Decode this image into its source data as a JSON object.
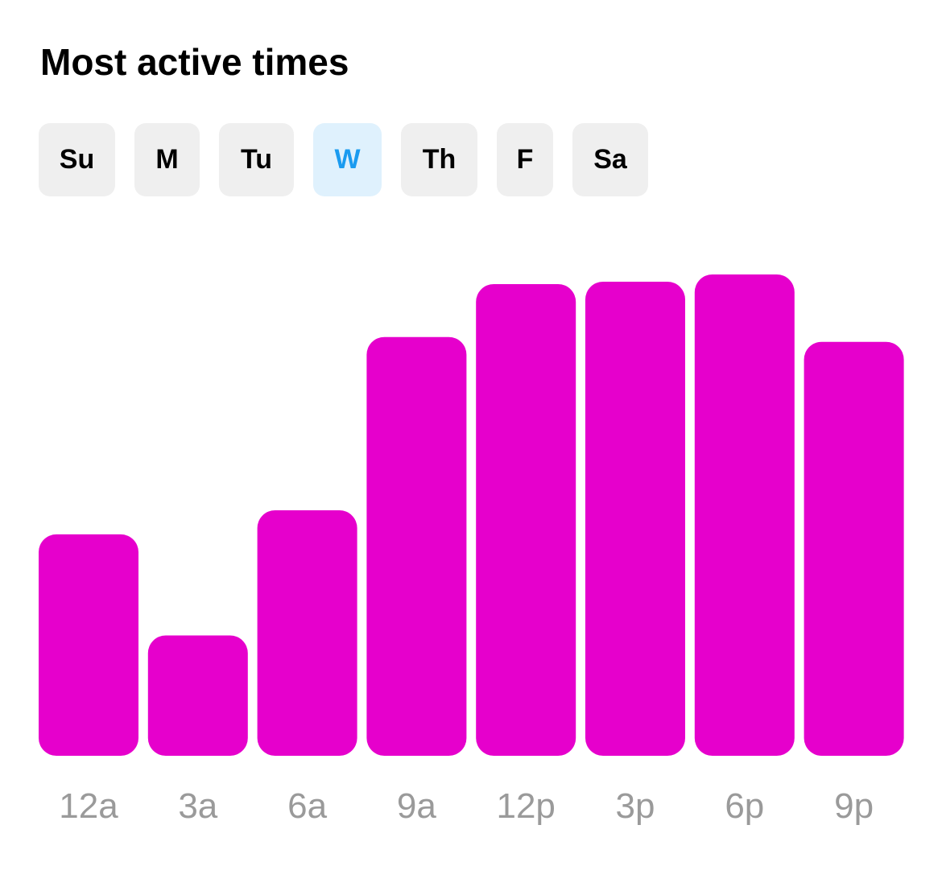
{
  "header": {
    "title": "Most active times"
  },
  "days": [
    {
      "label": "Su",
      "selected": false
    },
    {
      "label": "M",
      "selected": false
    },
    {
      "label": "Tu",
      "selected": false
    },
    {
      "label": "W",
      "selected": true
    },
    {
      "label": "Th",
      "selected": false
    },
    {
      "label": "F",
      "selected": false
    },
    {
      "label": "Sa",
      "selected": false
    }
  ],
  "colors": {
    "bar": "#e600cc",
    "tab_background": "#efefef",
    "tab_selected_background": "#dff1fd",
    "tab_selected_text": "#1a9bf0",
    "tick_label": "#9a9a9a"
  },
  "chart_data": {
    "type": "bar",
    "categories": [
      "12a",
      "3a",
      "6a",
      "9a",
      "12p",
      "3p",
      "6p",
      "9p"
    ],
    "values": [
      46,
      25,
      51,
      87,
      98,
      98.5,
      100,
      86
    ],
    "ylim": [
      0,
      100
    ],
    "grid": false,
    "legend": "none"
  }
}
